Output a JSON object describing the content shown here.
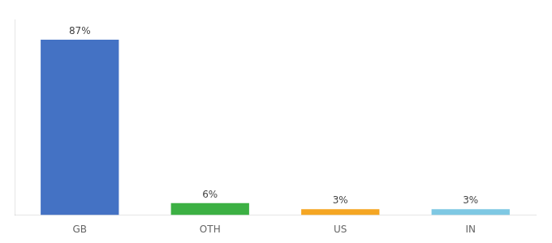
{
  "chart_data": {
    "type": "bar",
    "categories": [
      "GB",
      "OTH",
      "US",
      "IN"
    ],
    "values": [
      87,
      6,
      3,
      3
    ],
    "value_labels": [
      "87%",
      "6%",
      "3%",
      "3%"
    ],
    "colors": [
      "#4472c4",
      "#3cb043",
      "#f5a623",
      "#7ec8e3"
    ],
    "ylim": [
      0,
      97
    ],
    "data_labels": true,
    "tick_labels": "x",
    "grid": false
  }
}
